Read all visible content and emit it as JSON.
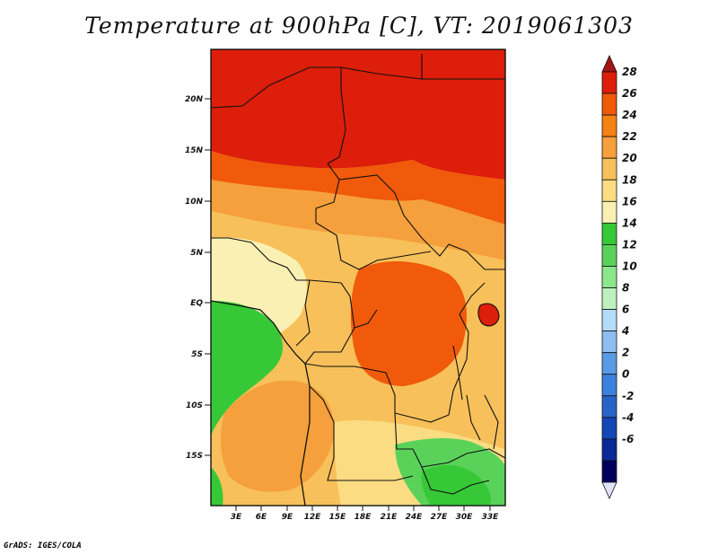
{
  "title": "Temperature at 900hPa [C], VT: 2019061303",
  "credit": "GrADS: IGES/COLA",
  "map": {
    "lat_ticks": [
      "20N",
      "15N",
      "10N",
      "5N",
      "EQ",
      "5S",
      "10S",
      "15S"
    ],
    "lon_ticks": [
      "3E",
      "6E",
      "9E",
      "12E",
      "15E",
      "18E",
      "21E",
      "24E",
      "27E",
      "30E",
      "33E"
    ],
    "lat_range": [
      -19.5,
      24.5
    ],
    "lon_range": [
      0,
      35
    ]
  },
  "colorbar": {
    "labels": [
      "28",
      "26",
      "24",
      "22",
      "20",
      "18",
      "16",
      "14",
      "12",
      "10",
      "8",
      "6",
      "4",
      "2",
      "0",
      "-2",
      "-4",
      "-6"
    ],
    "colors": [
      "#a51414",
      "#dc1e0a",
      "#f05a0a",
      "#f58214",
      "#f5a03c",
      "#f8c05a",
      "#fbdc82",
      "#faf0b4",
      "#37c837",
      "#5ad25a",
      "#8ce68c",
      "#bef0be",
      "#b4dcf8",
      "#8cbef0",
      "#5a9be6",
      "#3c82dc",
      "#2864c8",
      "#1446b4",
      "#0a2896",
      "#00005a",
      "#e1e1fa"
    ]
  }
}
